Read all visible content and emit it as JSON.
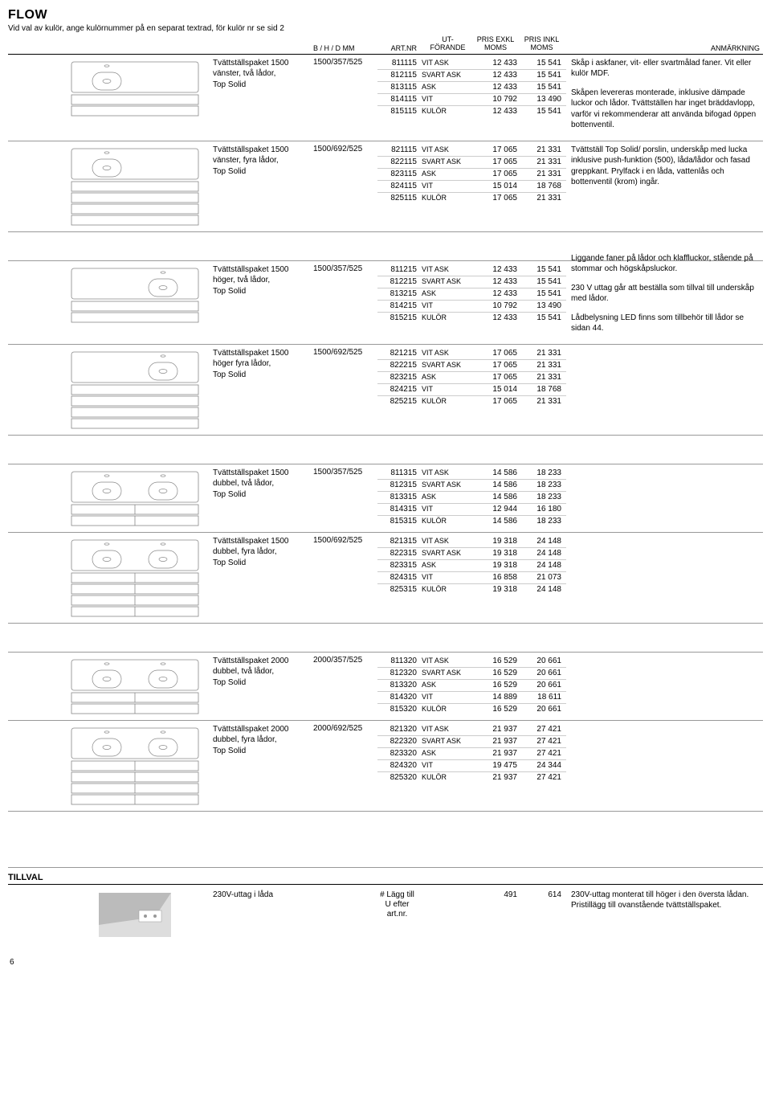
{
  "page": {
    "title": "FLOW",
    "subtitle": "Vid val av kulör, ange kulörnummer på en separat textrad, för kulör nr se sid 2",
    "page_number": "6"
  },
  "headers": {
    "dim": "B / H / D MM",
    "art": "ART.NR",
    "utf1": "UT-",
    "utf2": "FÖRANDE",
    "p1a": "PRIS EXKL",
    "p1b": "MOMS",
    "p2a": "PRIS INKL",
    "p2b": "MOMS",
    "note": "ANMÄRKNING"
  },
  "notes": {
    "n1": "Skåp i askfaner, vit- eller svartmålad faner. Vit eller kulör MDF.",
    "n2": "Skåpen levereras monterade, inklusive dämpade luckor och lådor. Tvättställen har inget bräddavlopp, varför vi rekommenderar att använda bifogad öppen bottenventil.",
    "n3": "Tvättställ Top Solid/ porslin, underskåp med lucka inklusive push-funktion (500), låda/lådor och fasad greppkant. Prylfack i en låda, vattenlås och bottenventil (krom) ingår.",
    "n4": "Liggande faner på lådor och klaffluckor, stående på stommar och högskåpsluckor.",
    "n5": "230 V uttag går att beställa som tillval till underskåp med lådor.",
    "n6": "Lådbelysning LED finns som tillbehör till lådor se sidan 44."
  },
  "sections": [
    {
      "desc1": "Tvättställspaket 1500",
      "desc2": "vänster, två lådor,",
      "desc3": "Top Solid",
      "dim": "1500/357/525",
      "img": "single-left-2",
      "rows": [
        {
          "art": "811115",
          "utf": "VIT ASK",
          "p1": "12 433",
          "p2": "15 541"
        },
        {
          "art": "812115",
          "utf": "SVART ASK",
          "p1": "12 433",
          "p2": "15 541"
        },
        {
          "art": "813115",
          "utf": "ASK",
          "p1": "12 433",
          "p2": "15 541"
        },
        {
          "art": "814115",
          "utf": "VIT",
          "p1": "10 792",
          "p2": "13 490"
        },
        {
          "art": "815115",
          "utf": "KULÖR",
          "p1": "12 433",
          "p2": "15 541"
        }
      ]
    },
    {
      "desc1": "Tvättställspaket 1500",
      "desc2": "vänster, fyra lådor,",
      "desc3": "Top Solid",
      "dim": "1500/692/525",
      "img": "single-left-4",
      "rows": [
        {
          "art": "821115",
          "utf": "VIT ASK",
          "p1": "17 065",
          "p2": "21 331"
        },
        {
          "art": "822115",
          "utf": "SVART ASK",
          "p1": "17 065",
          "p2": "21 331"
        },
        {
          "art": "823115",
          "utf": "ASK",
          "p1": "17 065",
          "p2": "21 331"
        },
        {
          "art": "824115",
          "utf": "VIT",
          "p1": "15 014",
          "p2": "18 768"
        },
        {
          "art": "825115",
          "utf": "KULÖR",
          "p1": "17 065",
          "p2": "21 331"
        }
      ]
    },
    {
      "desc1": "Tvättställspaket 1500",
      "desc2": "höger, två lådor,",
      "desc3": "Top Solid",
      "dim": "1500/357/525",
      "img": "single-right-2",
      "rows": [
        {
          "art": "811215",
          "utf": "VIT ASK",
          "p1": "12 433",
          "p2": "15 541"
        },
        {
          "art": "812215",
          "utf": "SVART ASK",
          "p1": "12 433",
          "p2": "15 541"
        },
        {
          "art": "813215",
          "utf": "ASK",
          "p1": "12 433",
          "p2": "15 541"
        },
        {
          "art": "814215",
          "utf": "VIT",
          "p1": "10 792",
          "p2": "13 490"
        },
        {
          "art": "815215",
          "utf": "KULÖR",
          "p1": "12 433",
          "p2": "15 541"
        }
      ]
    },
    {
      "desc1": "Tvättställspaket 1500",
      "desc2": "höger fyra lådor,",
      "desc3": "Top Solid",
      "dim": "1500/692/525",
      "img": "single-right-4",
      "rows": [
        {
          "art": "821215",
          "utf": "VIT ASK",
          "p1": "17 065",
          "p2": "21 331"
        },
        {
          "art": "822215",
          "utf": "SVART ASK",
          "p1": "17 065",
          "p2": "21 331"
        },
        {
          "art": "823215",
          "utf": "ASK",
          "p1": "17 065",
          "p2": "21 331"
        },
        {
          "art": "824215",
          "utf": "VIT",
          "p1": "15 014",
          "p2": "18 768"
        },
        {
          "art": "825215",
          "utf": "KULÖR",
          "p1": "17 065",
          "p2": "21 331"
        }
      ]
    },
    {
      "desc1": "Tvättställspaket 1500",
      "desc2": "dubbel, två lådor,",
      "desc3": "Top Solid",
      "dim": "1500/357/525",
      "img": "double-2",
      "rows": [
        {
          "art": "811315",
          "utf": "VIT ASK",
          "p1": "14 586",
          "p2": "18 233"
        },
        {
          "art": "812315",
          "utf": "SVART ASK",
          "p1": "14 586",
          "p2": "18 233"
        },
        {
          "art": "813315",
          "utf": "ASK",
          "p1": "14 586",
          "p2": "18 233"
        },
        {
          "art": "814315",
          "utf": "VIT",
          "p1": "12 944",
          "p2": "16 180"
        },
        {
          "art": "815315",
          "utf": "KULÖR",
          "p1": "14 586",
          "p2": "18 233"
        }
      ]
    },
    {
      "desc1": "Tvättställspaket 1500",
      "desc2": "dubbel, fyra lådor,",
      "desc3": "Top Solid",
      "dim": "1500/692/525",
      "img": "double-4",
      "rows": [
        {
          "art": "821315",
          "utf": "VIT ASK",
          "p1": "19 318",
          "p2": "24 148"
        },
        {
          "art": "822315",
          "utf": "SVART ASK",
          "p1": "19 318",
          "p2": "24 148"
        },
        {
          "art": "823315",
          "utf": "ASK",
          "p1": "19 318",
          "p2": "24 148"
        },
        {
          "art": "824315",
          "utf": "VIT",
          "p1": "16 858",
          "p2": "21 073"
        },
        {
          "art": "825315",
          "utf": "KULÖR",
          "p1": "19 318",
          "p2": "24 148"
        }
      ]
    },
    {
      "desc1": "Tvättställspaket 2000",
      "desc2": "dubbel, två lådor,",
      "desc3": "Top Solid",
      "dim": "2000/357/525",
      "img": "double-2-wide",
      "rows": [
        {
          "art": "811320",
          "utf": "VIT ASK",
          "p1": "16 529",
          "p2": "20 661"
        },
        {
          "art": "812320",
          "utf": "SVART ASK",
          "p1": "16 529",
          "p2": "20 661"
        },
        {
          "art": "813320",
          "utf": "ASK",
          "p1": "16 529",
          "p2": "20 661"
        },
        {
          "art": "814320",
          "utf": "VIT",
          "p1": "14 889",
          "p2": "18 611"
        },
        {
          "art": "815320",
          "utf": "KULÖR",
          "p1": "16 529",
          "p2": "20 661"
        }
      ]
    },
    {
      "desc1": "Tvättställspaket 2000",
      "desc2": "dubbel, fyra lådor,",
      "desc3": "Top Solid",
      "dim": "2000/692/525",
      "img": "double-4-wide",
      "rows": [
        {
          "art": "821320",
          "utf": "VIT ASK",
          "p1": "21 937",
          "p2": "27 421"
        },
        {
          "art": "822320",
          "utf": "SVART ASK",
          "p1": "21 937",
          "p2": "27 421"
        },
        {
          "art": "823320",
          "utf": "ASK",
          "p1": "21 937",
          "p2": "27 421"
        },
        {
          "art": "824320",
          "utf": "VIT",
          "p1": "19 475",
          "p2": "24 344"
        },
        {
          "art": "825320",
          "utf": "KULÖR",
          "p1": "21 937",
          "p2": "27 421"
        }
      ]
    }
  ],
  "tillval": {
    "label": "TILLVAL",
    "desc": "230V-uttag i låda",
    "art1": "# Lägg till",
    "art2": "U efter",
    "art3": "art.nr.",
    "p1": "491",
    "p2": "614",
    "note": "230V-uttag monterat till höger i den översta lådan. Pristillägg till ovanstående tvättställspaket."
  }
}
